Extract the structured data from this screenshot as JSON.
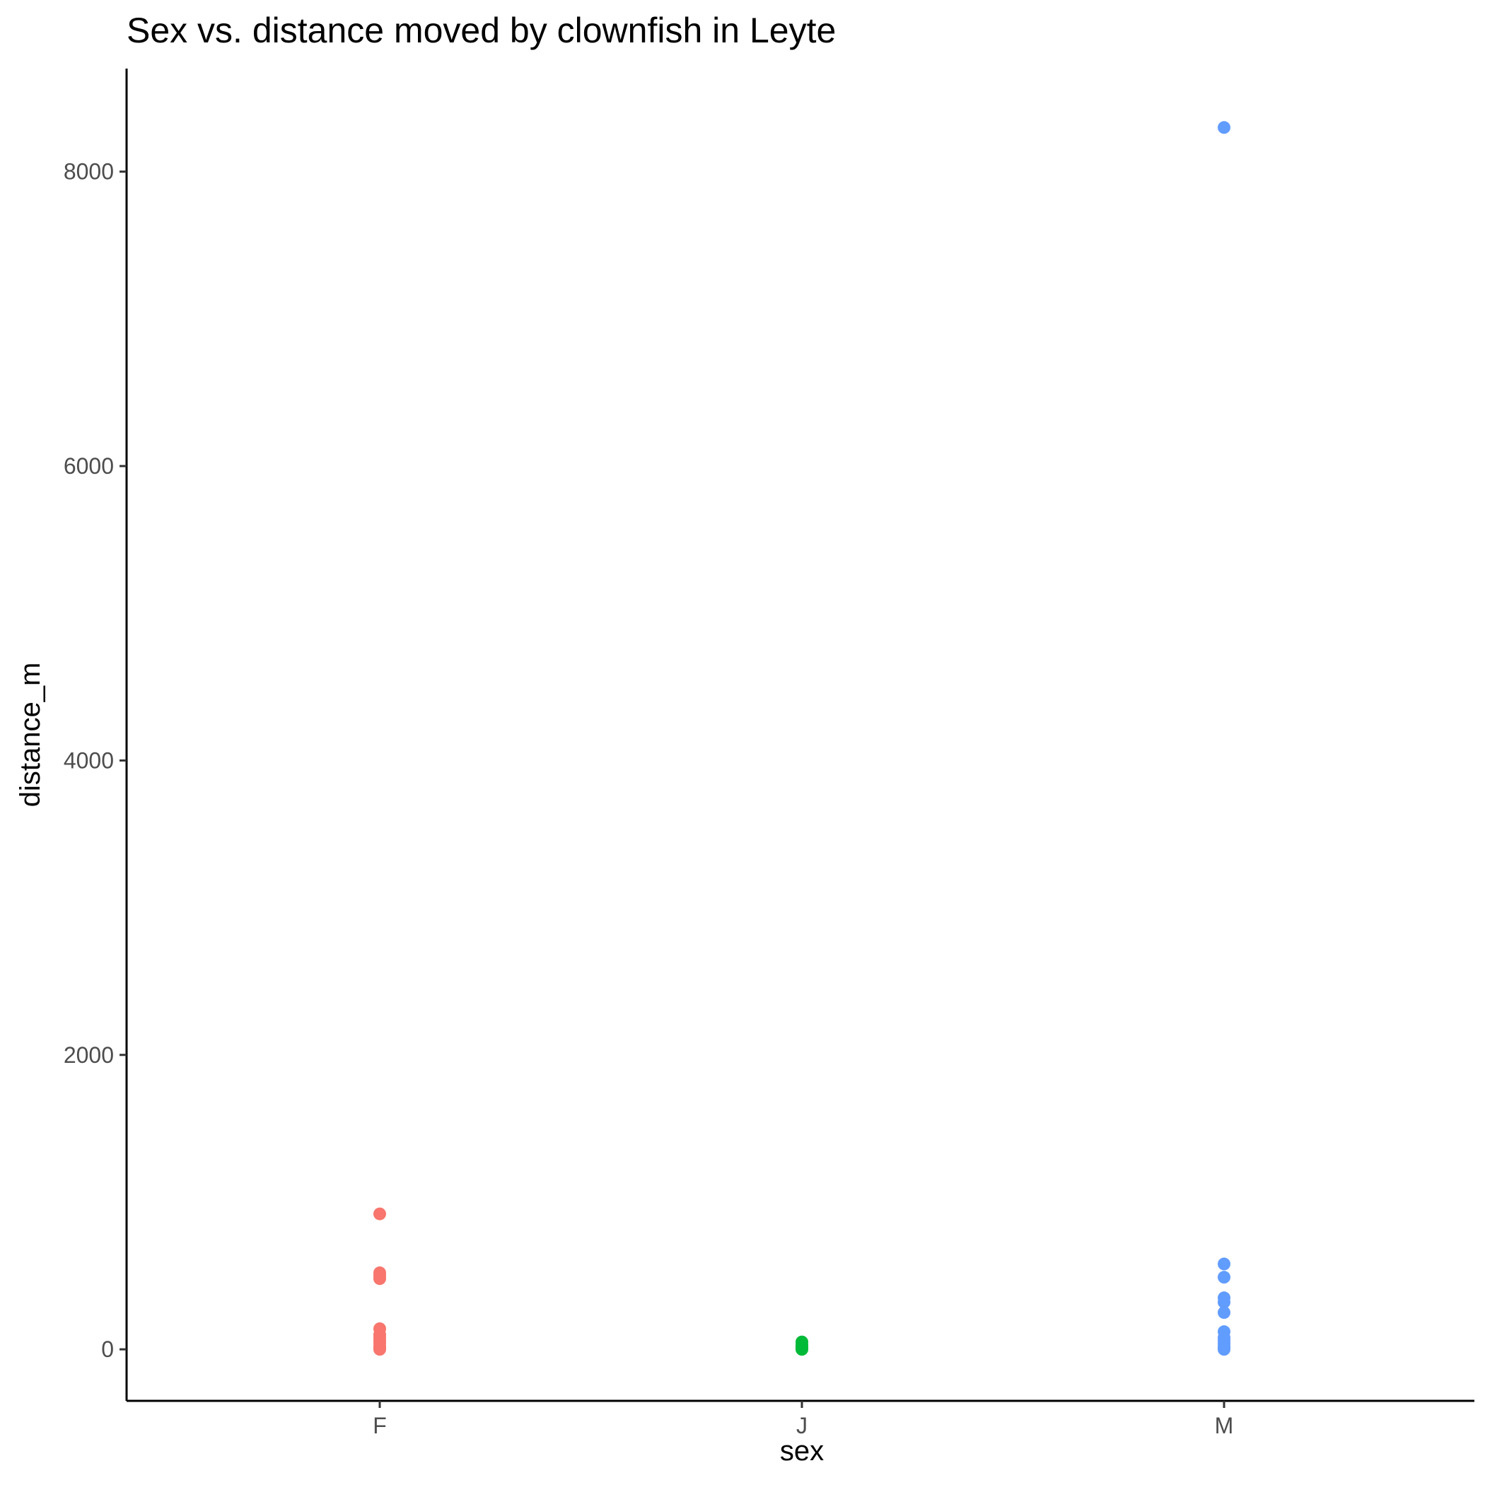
{
  "chart_data": {
    "type": "scatter",
    "title": "Sex vs. distance moved by clownfish in Leyte",
    "xlabel": "sex",
    "ylabel": "distance_m",
    "categories": [
      "F",
      "J",
      "M"
    ],
    "ylim": [
      -350,
      8700
    ],
    "yticks": [
      0,
      2000,
      4000,
      6000,
      8000
    ],
    "ytick_labels": [
      "0",
      "2000",
      "4000",
      "6000",
      "8000"
    ],
    "grid": false,
    "legend": "none",
    "series": [
      {
        "name": "F",
        "color": "#F8766D",
        "values": [
          920,
          520,
          500,
          480,
          140,
          100,
          80,
          60,
          40,
          20,
          10,
          0
        ]
      },
      {
        "name": "J",
        "color": "#00BA38",
        "values": [
          50,
          30,
          20,
          10,
          5,
          0
        ]
      },
      {
        "name": "M",
        "color": "#619CFF",
        "values": [
          8300,
          580,
          490,
          350,
          320,
          250,
          120,
          80,
          60,
          40,
          20,
          10,
          0
        ]
      }
    ]
  }
}
